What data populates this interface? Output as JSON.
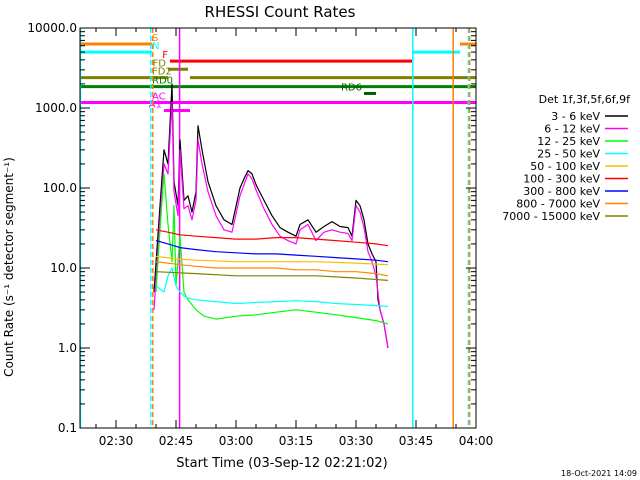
{
  "chart_data": {
    "type": "line",
    "title": "RHESSI Count Rates",
    "xlabel": "Start Time (03-Sep-12 02:21:02)",
    "ylabel": "Count Rate (s⁻¹ detector segment⁻¹)",
    "y_scale": "log",
    "ylim": [
      0.1,
      10000
    ],
    "xlim_minutes": [
      21.0,
      120.0
    ],
    "x_ticks": [
      {
        "label": "02:30",
        "m": 30
      },
      {
        "label": "02:45",
        "m": 45
      },
      {
        "label": "03:00",
        "m": 60
      },
      {
        "label": "03:15",
        "m": 75
      },
      {
        "label": "03:30",
        "m": 90
      },
      {
        "label": "03:45",
        "m": 105
      },
      {
        "label": "04:00",
        "m": 120
      }
    ],
    "y_ticks": [
      {
        "label": "0.1",
        "v": 0.1
      },
      {
        "label": "1.0",
        "v": 1
      },
      {
        "label": "10.0",
        "v": 10
      },
      {
        "label": "100.0",
        "v": 100
      },
      {
        "label": "1000.0",
        "v": 1000
      },
      {
        "label": "10000.0",
        "v": 10000
      }
    ],
    "legend_title": "Det 1f,3f,5f,6f,9f",
    "legend_placement": "right",
    "series": [
      {
        "name": "3 - 6 keV",
        "color": "#000000",
        "x": [
          39.5,
          41,
          42,
          43,
          44,
          44.5,
          45.5,
          46,
          47,
          48,
          49,
          50,
          50.5,
          51.5,
          53,
          55,
          57,
          59,
          61,
          62,
          63,
          64,
          65,
          67,
          69,
          71,
          73,
          75,
          76,
          78,
          80,
          82,
          84,
          86,
          88,
          89,
          90,
          91,
          92,
          93,
          94,
          95,
          95.5,
          96,
          97,
          98
        ],
        "values": [
          5,
          60,
          300,
          200,
          2000,
          120,
          60,
          400,
          70,
          80,
          50,
          90,
          600,
          300,
          120,
          60,
          40,
          35,
          100,
          130,
          165,
          150,
          110,
          70,
          45,
          32,
          28,
          25,
          35,
          40,
          28,
          33,
          38,
          33,
          32,
          25,
          70,
          60,
          40,
          20,
          15,
          12,
          4,
          3,
          2,
          1
        ]
      },
      {
        "name": "6 - 12 keV",
        "color": "#ff00ff",
        "x": [
          39.5,
          41,
          42,
          43,
          44,
          44.5,
          45.5,
          46,
          47,
          48,
          49,
          50,
          50.5,
          51.5,
          53,
          55,
          57,
          59,
          61,
          62,
          63,
          64,
          65,
          67,
          69,
          71,
          73,
          75,
          76,
          78,
          80,
          82,
          84,
          86,
          88,
          89,
          90,
          91,
          92,
          93,
          94,
          95,
          96,
          97,
          98
        ],
        "values": [
          3,
          40,
          200,
          150,
          1200,
          90,
          45,
          300,
          55,
          60,
          40,
          70,
          400,
          200,
          90,
          45,
          30,
          28,
          80,
          110,
          150,
          130,
          95,
          55,
          35,
          25,
          22,
          20,
          30,
          35,
          22,
          28,
          30,
          28,
          27,
          22,
          60,
          50,
          32,
          16,
          12,
          8,
          3,
          2,
          1
        ]
      },
      {
        "name": "12 - 25 keV",
        "color": "#00ff00",
        "x": [
          40,
          41,
          42,
          43,
          44,
          44.5,
          45,
          46,
          47,
          48,
          50,
          52,
          55,
          60,
          65,
          70,
          75,
          80,
          85,
          90,
          95,
          98
        ],
        "values": [
          5,
          30,
          150,
          35,
          12,
          60,
          6,
          25,
          5,
          4,
          3,
          2.5,
          2.3,
          2.5,
          2.6,
          2.8,
          3,
          2.8,
          2.6,
          2.4,
          2.2,
          2
        ]
      },
      {
        "name": "25 - 50 keV",
        "color": "#00ffff",
        "x": [
          40,
          42,
          43,
          44,
          45,
          46,
          47,
          48,
          50,
          55,
          60,
          65,
          70,
          75,
          80,
          85,
          90,
          95,
          98
        ],
        "values": [
          6,
          5,
          8,
          10,
          6,
          5,
          4.5,
          4.2,
          4,
          3.8,
          3.6,
          3.7,
          3.8,
          3.9,
          3.8,
          3.6,
          3.5,
          3.4,
          3.3
        ]
      },
      {
        "name": "50 - 100 keV",
        "color": "#ffbb00",
        "x": [
          40,
          45,
          50,
          60,
          70,
          80,
          90,
          98
        ],
        "values": [
          14,
          13,
          12.5,
          12,
          12,
          12,
          11.5,
          11
        ]
      },
      {
        "name": "100 - 300 keV",
        "color": "#ff0000",
        "x": [
          40,
          43,
          46,
          50,
          55,
          60,
          65,
          70,
          75,
          80,
          85,
          90,
          95,
          98
        ],
        "values": [
          30,
          28,
          26,
          25,
          24,
          23,
          23,
          24,
          24,
          23,
          22,
          21,
          20,
          19
        ]
      },
      {
        "name": "300 - 800 keV",
        "color": "#0000ff",
        "x": [
          40,
          43,
          46,
          50,
          55,
          60,
          65,
          70,
          75,
          80,
          85,
          90,
          95,
          98
        ],
        "values": [
          22,
          20,
          18,
          17,
          16,
          15.5,
          15,
          15,
          14.5,
          14,
          13.5,
          13,
          12.5,
          12
        ]
      },
      {
        "name": "800 - 7000 keV",
        "color": "#ff8800",
        "x": [
          40,
          43,
          46,
          50,
          55,
          60,
          65,
          70,
          75,
          80,
          85,
          90,
          95,
          98
        ],
        "values": [
          12,
          11.5,
          11,
          10.5,
          10,
          10,
          10,
          10,
          9.5,
          9.5,
          9,
          9,
          8.5,
          8
        ]
      },
      {
        "name": "7000 - 15000 keV",
        "color": "#808000",
        "x": [
          40,
          50,
          60,
          70,
          80,
          90,
          98
        ],
        "values": [
          9,
          8.5,
          8,
          8,
          8,
          7.5,
          7
        ]
      }
    ],
    "flag_bars": [
      {
        "label": "S",
        "color": "#ff8000",
        "v": 6300,
        "segments": [
          [
            21,
            39
          ],
          [
            116,
            120
          ]
        ]
      },
      {
        "label": "N",
        "color": "#00ffff",
        "v": 5000,
        "segments": [
          [
            21,
            39
          ],
          [
            104,
            116
          ]
        ]
      },
      {
        "label": "F",
        "color": "#ff0000",
        "v": 3850,
        "segments": [
          [
            43.5,
            104
          ]
        ]
      },
      {
        "label": "FD",
        "color": "#808000",
        "v": 3050,
        "segments": [
          [
            43,
            48
          ]
        ]
      },
      {
        "label": "FD2",
        "color": "#808000",
        "v": 2400,
        "segments": [
          [
            21,
            43
          ],
          [
            48.5,
            120
          ]
        ]
      },
      {
        "label": "RD0",
        "color": "#008000",
        "v": 1850,
        "segments": [
          [
            21,
            120
          ]
        ]
      },
      {
        "label": "RD6",
        "color": "#006000",
        "v": 1520,
        "segments": [
          [
            92,
            95
          ]
        ]
      },
      {
        "label": "AC",
        "color": "#ff00ff",
        "v": 1170,
        "segments": [
          [
            21,
            120
          ]
        ]
      },
      {
        "label": "A1",
        "color": "#ff00ff",
        "v": 930,
        "segments": [
          [
            42,
            48.5
          ]
        ]
      }
    ],
    "vlines": [
      {
        "m": 21.1,
        "color": "#00ffff",
        "dashed": false
      },
      {
        "m": 38.7,
        "color": "#00ffff",
        "dashed": true
      },
      {
        "m": 39.2,
        "color": "#ff8000",
        "dashed": true
      },
      {
        "m": 45.9,
        "color": "#ff00ff",
        "dashed": false
      },
      {
        "m": 104.2,
        "color": "#00ffff",
        "dashed": false
      },
      {
        "m": 114.3,
        "color": "#ff8000",
        "dashed": false
      },
      {
        "m": 118.1,
        "color": "#00ffff",
        "dashed": true
      },
      {
        "m": 118.4,
        "color": "#ff8000",
        "dashed": true
      }
    ]
  },
  "footer": {
    "timestamp": "18-Oct-2021 14:09"
  }
}
